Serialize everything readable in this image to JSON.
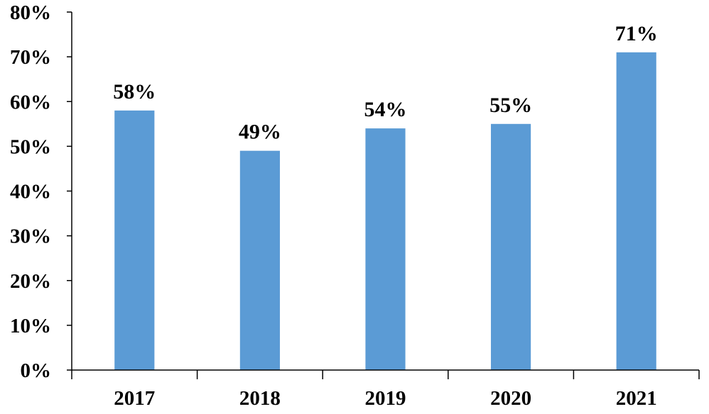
{
  "chart_data": {
    "type": "bar",
    "title": "",
    "xlabel": "",
    "ylabel": "",
    "categories": [
      "2017",
      "2018",
      "2019",
      "2020",
      "2021"
    ],
    "values": [
      58,
      49,
      54,
      55,
      71
    ],
    "data_labels": [
      "58%",
      "49%",
      "54%",
      "55%",
      "71%"
    ],
    "ylim": [
      0,
      80
    ],
    "y_ticks": [
      0,
      10,
      20,
      30,
      40,
      50,
      60,
      70,
      80
    ],
    "y_tick_labels": [
      "0%",
      "10%",
      "20%",
      "30%",
      "40%",
      "50%",
      "60%",
      "70%",
      "80%"
    ],
    "y_unit": "%",
    "grid": false,
    "legend": "none",
    "bar_color": "#5b9bd5",
    "axis_color": "#000000"
  }
}
